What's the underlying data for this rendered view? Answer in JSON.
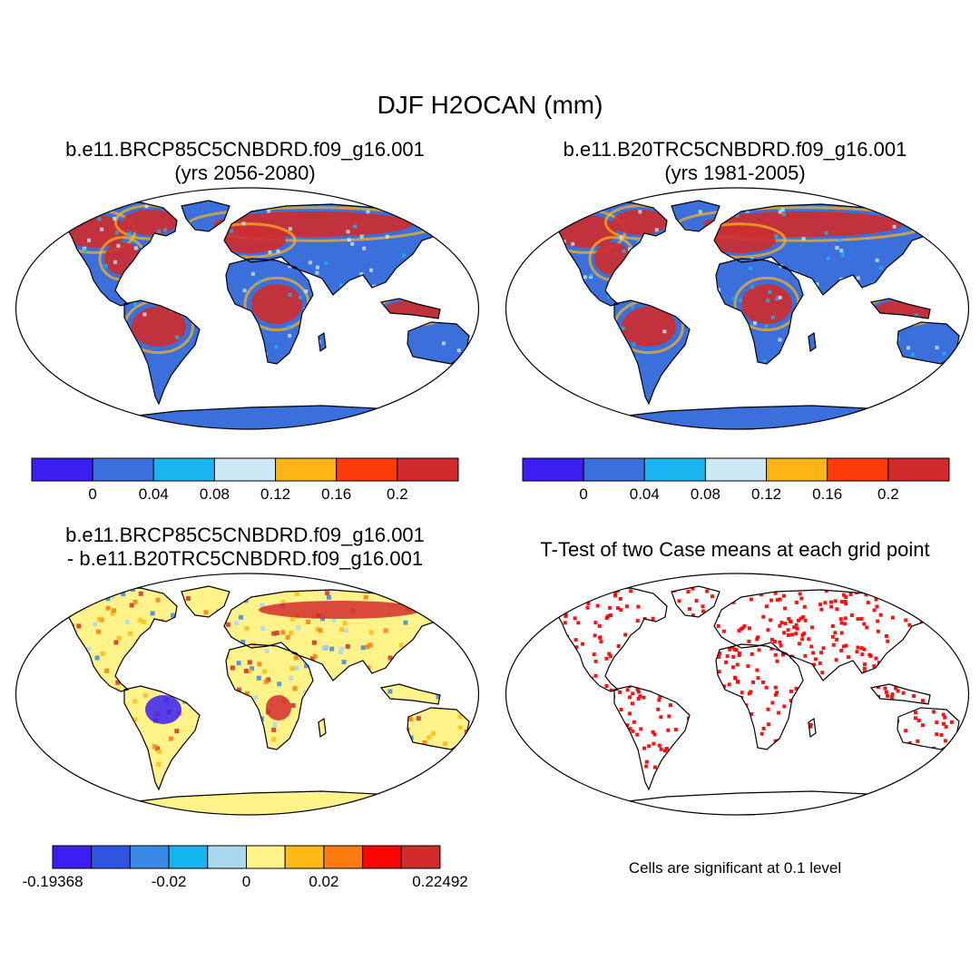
{
  "title": "DJF H2OCAN (mm)",
  "panels": [
    {
      "title_line1": "b.e11.BRCP85C5CNBDRD.f09_g16.001",
      "title_line2": "(yrs 2056-2080)",
      "kind": "abs"
    },
    {
      "title_line1": "b.e11.B20TRC5CNBDRD.f09_g16.001",
      "title_line2": "(yrs 1981-2005)",
      "kind": "abs"
    },
    {
      "title_line1": "b.e11.BRCP85C5CNBDRD.f09_g16.001",
      "title_line2": "- b.e11.B20TRC5CNBDRD.f09_g16.001",
      "kind": "diff"
    },
    {
      "title_line1": "T-Test of two Case means at each grid point",
      "title_line2": "",
      "kind": "ttest"
    }
  ],
  "colorbar_abs": {
    "colors": [
      "#3b1ff2",
      "#3a6fdc",
      "#1ab4f0",
      "#cce9f5",
      "#fdb515",
      "#fd3c0a",
      "#d22b2b"
    ],
    "labels": [
      "0",
      "0.04",
      "0.08",
      "0.12",
      "0.16",
      "0.2"
    ]
  },
  "colorbar_diff": {
    "colors": [
      "#3b1ff2",
      "#2f55e0",
      "#3a89e6",
      "#15b6f0",
      "#a9d8ef",
      "#fff38a",
      "#fdbb14",
      "#fd7a10",
      "#fb0505",
      "#d22b2b"
    ],
    "labels": [
      "-0.19368",
      "-0.02",
      "0",
      "0.02",
      "0.22492"
    ]
  },
  "ttest_note": "Cells are significant at 0.1 level",
  "colors": {
    "land_abs": "#3a6fdc",
    "land_diff": "#fff38a",
    "significant": "#fb0505"
  }
}
